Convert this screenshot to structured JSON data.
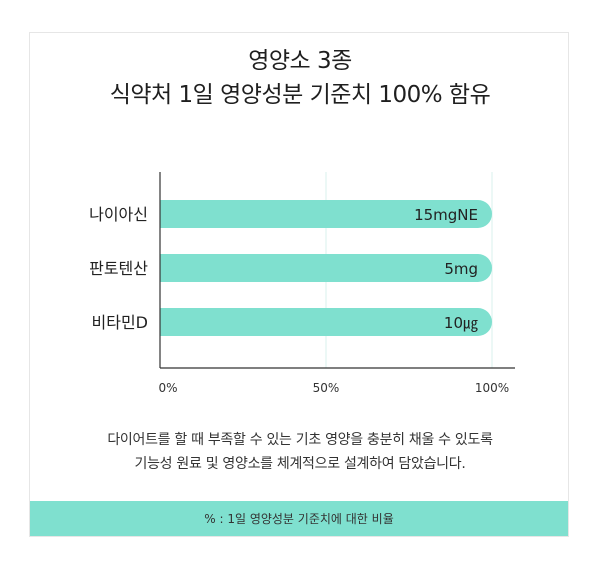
{
  "title": {
    "line1": "영양소 3종",
    "line2": "식약처 1일 영양성분 기준치 100% 함유"
  },
  "chart_data": {
    "type": "bar",
    "orientation": "horizontal",
    "categories": [
      "나이아신",
      "판토텐산",
      "비타민D"
    ],
    "values": [
      100,
      100,
      100
    ],
    "value_labels": [
      "15mgNE",
      "5mg",
      "10㎍"
    ],
    "xlim": [
      0,
      100
    ],
    "x_ticks": [
      "0%",
      "50%",
      "100%"
    ],
    "x_tick_values": [
      0,
      50,
      100
    ],
    "grid": true,
    "bar_color": "#7fe0cf",
    "title": "",
    "xlabel": "",
    "ylabel": ""
  },
  "description": {
    "line1": "다이어트를 할 때 부족할 수 있는 기초 영양을 충분히 채울 수 있도록",
    "line2": "기능성 원료 및 영양소를 체계적으로 설계하여 담았습니다."
  },
  "footer": {
    "note": "% : 1일 영양성분 기준치에 대한 비율"
  },
  "colors": {
    "accent": "#7fe0cf",
    "grid": "#d9f2ee",
    "axis": "#333333"
  }
}
